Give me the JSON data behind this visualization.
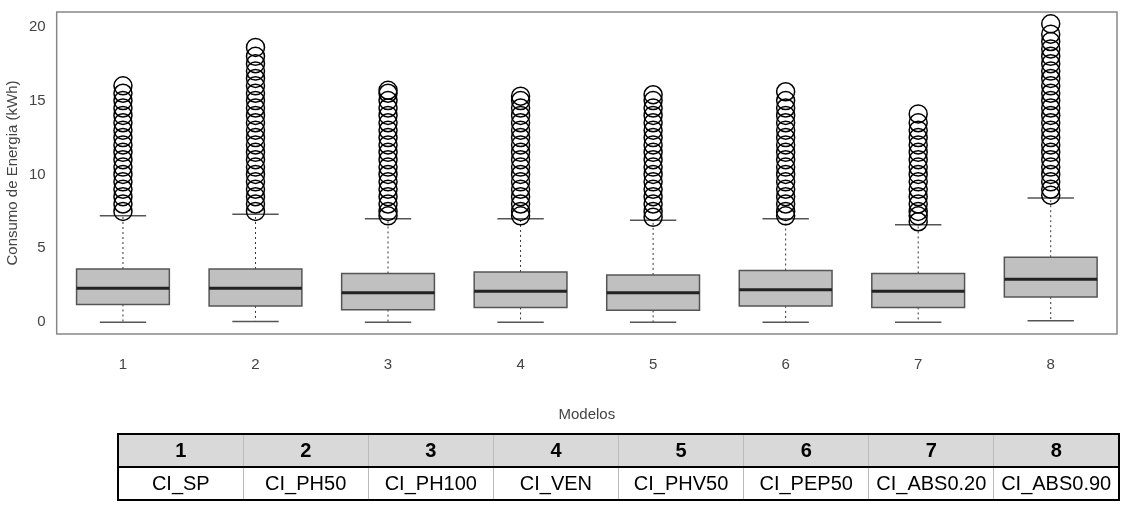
{
  "chart_data": {
    "type": "box",
    "xlabel": "Modelos",
    "ylabel": "Consumo de Energia (kWh)",
    "categories": [
      "1",
      "2",
      "3",
      "4",
      "5",
      "6",
      "7",
      "8"
    ],
    "ylim": [
      -0.8,
      21
    ],
    "yticks": [
      0,
      5,
      10,
      15,
      20
    ],
    "marker": "circle",
    "color": "#c0c0c0",
    "boxes": [
      {
        "low": 0,
        "q1": 1.2,
        "median": 2.3,
        "q3": 3.6,
        "high": 7.2,
        "outliers": [
          7.5,
          8,
          8.5,
          9,
          9.5,
          10,
          10.5,
          11,
          11.5,
          12,
          12.5,
          13,
          13.5,
          14,
          14.5,
          15,
          15.5,
          16
        ]
      },
      {
        "low": 0.05,
        "q1": 1.1,
        "median": 2.3,
        "q3": 3.6,
        "high": 7.3,
        "outliers": [
          7.5,
          8,
          8.5,
          9,
          9.5,
          10,
          10.5,
          11,
          11.5,
          12,
          12.5,
          13,
          13.5,
          14,
          14.5,
          15,
          15.5,
          16,
          16.5,
          17,
          17.5,
          18,
          18.6
        ]
      },
      {
        "low": 0,
        "q1": 0.85,
        "median": 2,
        "q3": 3.3,
        "high": 7,
        "outliers": [
          7.2,
          7.5,
          8,
          8.5,
          9,
          9.5,
          10,
          10.5,
          11,
          11.5,
          12,
          12.5,
          13,
          13.5,
          14,
          14.5,
          15,
          15.5,
          15.7
        ]
      },
      {
        "low": 0,
        "q1": 1,
        "median": 2.1,
        "q3": 3.4,
        "high": 7,
        "outliers": [
          7.2,
          7.5,
          8,
          8.5,
          9,
          9.5,
          10,
          10.5,
          11,
          11.5,
          12,
          12.5,
          13,
          13.5,
          14,
          14.5,
          15,
          15.3
        ]
      },
      {
        "low": 0,
        "q1": 0.8,
        "median": 2,
        "q3": 3.2,
        "high": 6.9,
        "outliers": [
          7.1,
          7.5,
          8,
          8.5,
          9,
          9.5,
          10,
          10.5,
          11,
          11.5,
          12,
          12.5,
          13,
          13.5,
          14,
          14.5,
          15,
          15.4
        ]
      },
      {
        "low": 0,
        "q1": 1.1,
        "median": 2.2,
        "q3": 3.5,
        "high": 7,
        "outliers": [
          7.2,
          7.5,
          8,
          8.5,
          9,
          9.5,
          10,
          10.5,
          11,
          11.5,
          12,
          12.5,
          13,
          13.5,
          14,
          14.5,
          15,
          15.6
        ]
      },
      {
        "low": 0,
        "q1": 1,
        "median": 2.1,
        "q3": 3.3,
        "high": 6.6,
        "outliers": [
          6.8,
          7.2,
          7.5,
          8,
          8.5,
          9,
          9.5,
          10,
          10.5,
          11,
          11.5,
          12,
          12.5,
          13,
          13.5,
          14.1
        ]
      },
      {
        "low": 0.1,
        "q1": 1.7,
        "median": 2.9,
        "q3": 4.4,
        "high": 8.4,
        "outliers": [
          8.6,
          9,
          9.5,
          10,
          10.5,
          11,
          11.5,
          12,
          12.5,
          13,
          13.5,
          14,
          14.5,
          15,
          15.5,
          16,
          16.5,
          17,
          17.5,
          18,
          18.5,
          19,
          19.5,
          20.2
        ]
      }
    ],
    "annotations": [
      "CI_SP",
      "CI_PH50",
      "CI_PH100",
      "CI_VEN",
      "CI_PHV50",
      "CI_PEP50",
      "CI_ABS0.20",
      "CI_ABS0.90"
    ]
  }
}
